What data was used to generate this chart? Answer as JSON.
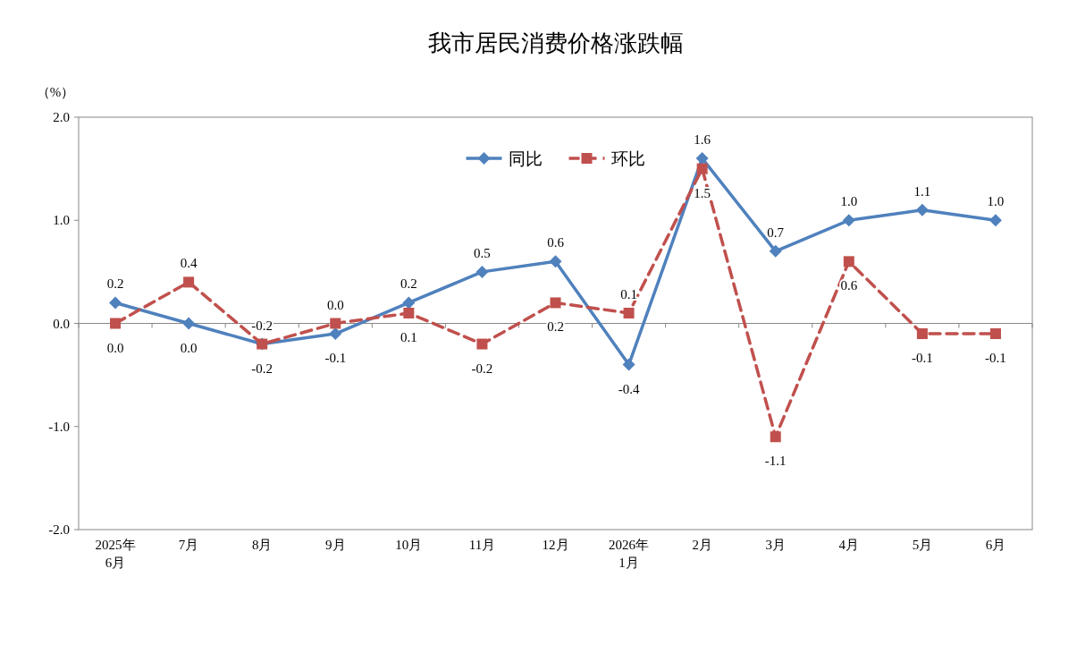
{
  "chart_data": {
    "type": "line",
    "title": "我市居民消费价格涨跌幅",
    "ylabel": "（%）",
    "categories": [
      "2025年\n6月",
      "7月",
      "8月",
      "9月",
      "10月",
      "11月",
      "12月",
      "2026年\n1月",
      "2月",
      "3月",
      "4月",
      "5月",
      "6月"
    ],
    "series": [
      {
        "name": "同比",
        "color": "#4f81bd",
        "marker": "diamond",
        "line_style": "solid",
        "values": [
          0.2,
          0.0,
          -0.2,
          -0.1,
          0.2,
          0.5,
          0.6,
          -0.4,
          1.6,
          0.7,
          1.0,
          1.1,
          1.0
        ],
        "value_labels": [
          "0.2",
          "0.0",
          "-0.2",
          "-0.1",
          "0.2",
          "0.5",
          "0.6",
          "-0.4",
          "1.6",
          "0.7",
          "1.0",
          "1.1",
          "1.0"
        ]
      },
      {
        "name": "环比",
        "color": "#c0504d",
        "marker": "square",
        "line_style": "dashed",
        "values": [
          0.0,
          0.4,
          -0.2,
          0.0,
          0.1,
          -0.2,
          0.2,
          0.1,
          1.5,
          -1.1,
          0.6,
          -0.1,
          -0.1
        ],
        "value_labels": [
          "0.0",
          "0.4",
          "-0.2",
          "0.0",
          "0.1",
          "-0.2",
          "0.2",
          "0.1",
          "1.5",
          "-1.1",
          "0.6",
          "-0.1",
          "-0.1"
        ]
      }
    ],
    "ylim": [
      -2,
      2
    ],
    "yticks": [
      {
        "value": -2,
        "label": "-2.0"
      },
      {
        "value": -1,
        "label": "-1.0"
      },
      {
        "value": 0,
        "label": "0.0"
      },
      {
        "value": 1,
        "label": "1.0"
      },
      {
        "value": 2,
        "label": "2.0"
      }
    ],
    "legend": "top"
  }
}
